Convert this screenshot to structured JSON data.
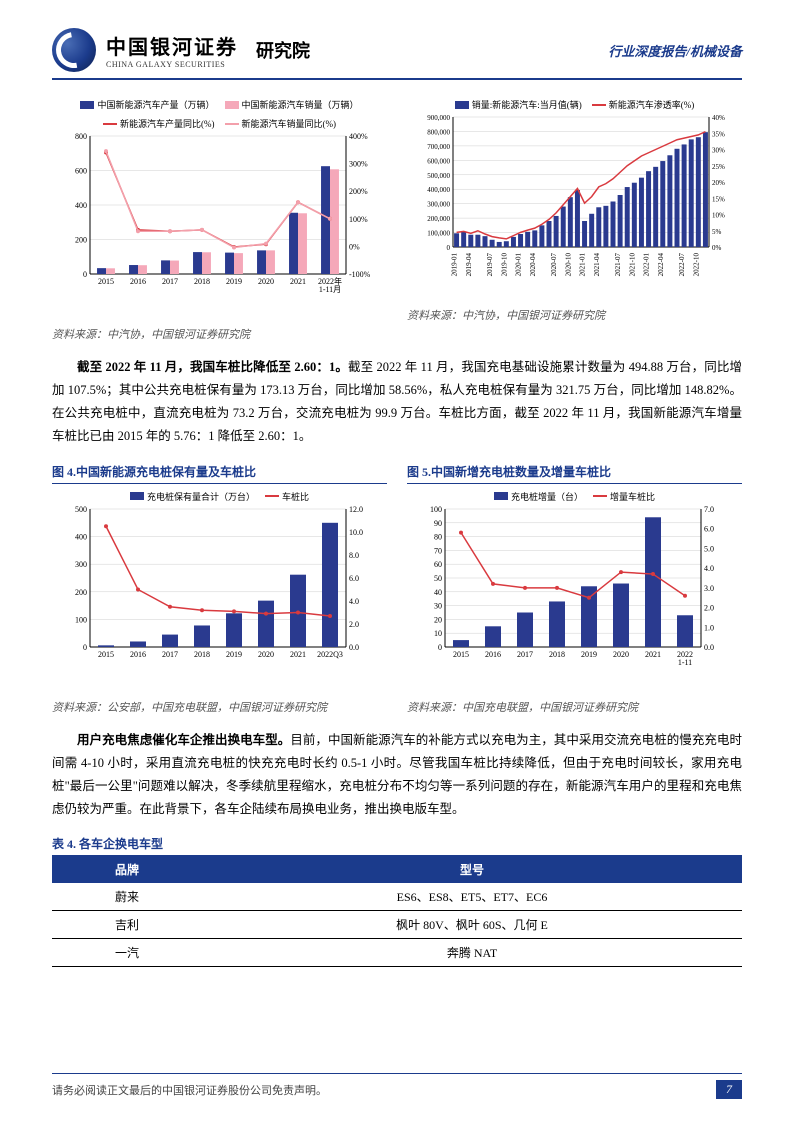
{
  "header": {
    "brand_cn": "中国银河证券",
    "brand_en": "CHINA GALAXY SECURITIES",
    "institute": "研究院",
    "doc_type": "行业深度报告/机械设备"
  },
  "colors": {
    "navy": "#1b3b8c",
    "red": "#d93a3f",
    "pink": "#f7b6c2",
    "bar_navy": "#2a3a8f",
    "bar_pink": "#f5a8b9",
    "line_red": "#d93a3f",
    "line_pink": "#f3a0ab",
    "grid": "#cfcfcf",
    "axis": "#000000",
    "bg": "#ffffff"
  },
  "chart1": {
    "legend": [
      "中国新能源汽车产量（万辆）",
      "中国新能源汽车销量（万辆）",
      "新能源汽车产量同比(%)",
      "新能源汽车销量同比(%)"
    ],
    "legend_colors": [
      "#2a3a8f",
      "#f5a8b9",
      "#d93a3f",
      "#f3a0ab"
    ],
    "x_labels": [
      "2015",
      "2016",
      "2017",
      "2018",
      "2019",
      "2020",
      "2021",
      "2022年\n1-11月"
    ],
    "left_ylim": [
      0,
      800
    ],
    "left_ticks": [
      0,
      200,
      400,
      600,
      800
    ],
    "right_ylim": [
      -100,
      400
    ],
    "right_ticks": [
      "-100%",
      "0%",
      "100%",
      "200%",
      "300%",
      "400%"
    ],
    "bar1": [
      34,
      52,
      79,
      127,
      124,
      137,
      355,
      625
    ],
    "bar2": [
      33,
      51,
      78,
      126,
      121,
      137,
      352,
      607
    ],
    "line1": [
      340,
      60,
      55,
      60,
      -2,
      8,
      160,
      100
    ],
    "line2": [
      345,
      55,
      55,
      60,
      -4,
      10,
      160,
      100
    ],
    "source": "资料来源：中汽协，中国银河证券研究院"
  },
  "chart2": {
    "legend": [
      "销量:新能源汽车:当月值(辆)",
      "新能源汽车渗透率(%)"
    ],
    "legend_colors": [
      "#2a3a8f",
      "#d93a3f"
    ],
    "left_ylim": [
      0,
      900000
    ],
    "left_ticks": [
      "0",
      "100,000",
      "200,000",
      "300,000",
      "400,000",
      "500,000",
      "600,000",
      "700,000",
      "800,000",
      "900,000"
    ],
    "right_ylim": [
      0,
      40
    ],
    "right_ticks": [
      "0%",
      "5%",
      "10%",
      "15%",
      "20%",
      "25%",
      "30%",
      "35%",
      "40%"
    ],
    "x_labels": [
      "2019-01",
      "2019-04",
      "2019-07",
      "2019-10",
      "2020-01",
      "2020-04",
      "2020-07",
      "2020-10",
      "2021-01",
      "2021-04",
      "2021-07",
      "2021-10",
      "2022-01",
      "2022-04",
      "2022-07",
      "2022-10"
    ],
    "bars": [
      95,
      105,
      85,
      85,
      75,
      50,
      35,
      40,
      70,
      90,
      105,
      115,
      150,
      180,
      215,
      280,
      345,
      395,
      180,
      230,
      275,
      285,
      315,
      360,
      415,
      445,
      480,
      525,
      555,
      595,
      635,
      680,
      710,
      745,
      760,
      795
    ],
    "line": [
      4.5,
      4.8,
      4.2,
      5.0,
      4.0,
      3.2,
      2.8,
      2.5,
      3.5,
      4.5,
      5.2,
      5.8,
      7.0,
      8.5,
      10.5,
      13.0,
      15.5,
      18.0,
      13.5,
      15.5,
      18.5,
      19.5,
      21.0,
      23.0,
      25.0,
      26.5,
      28.0,
      29.0,
      30.0,
      31.0,
      32.0,
      33.0,
      33.5,
      34.0,
      34.5,
      35.5
    ],
    "source": "资料来源：中汽协，中国银河证券研究院"
  },
  "para1": {
    "lead": "截至 2022 年 11 月，我国车桩比降低至 2.60：1。",
    "body": "截至 2022 年 11 月，我国充电基础设施累计数量为 494.88 万台，同比增加 107.5%；其中公共充电桩保有量为 173.13 万台，同比增加 58.56%，私人充电桩保有量为 321.75 万台，同比增加 148.82%。在公共充电桩中，直流充电桩为 73.2 万台，交流充电桩为 99.9 万台。车桩比方面，截至 2022 年 11 月，我国新能源汽车增量车桩比已由 2015 年的 5.76：1 降低至 2.60：1。"
  },
  "chart3": {
    "title": "图 4.中国新能源充电桩保有量及车桩比",
    "legend": [
      "充电桩保有量合计（万台）",
      "车桩比"
    ],
    "legend_colors": [
      "#2a3a8f",
      "#d93a3f"
    ],
    "x_labels": [
      "2015",
      "2016",
      "2017",
      "2018",
      "2019",
      "2020",
      "2021",
      "2022Q3"
    ],
    "left_ylim": [
      0,
      500
    ],
    "left_ticks": [
      0,
      100,
      200,
      300,
      400,
      500
    ],
    "right_ylim": [
      0,
      12
    ],
    "right_ticks": [
      "0.0",
      "2.0",
      "4.0",
      "6.0",
      "8.0",
      "10.0",
      "12.0"
    ],
    "bars": [
      6,
      20,
      45,
      78,
      122,
      168,
      262,
      450
    ],
    "line": [
      10.5,
      5.0,
      3.5,
      3.2,
      3.1,
      2.9,
      3.0,
      2.7
    ],
    "source": "资料来源：公安部，中国充电联盟，中国银河证券研究院"
  },
  "chart4": {
    "title": "图 5.中国新增充电桩数量及增量车桩比",
    "legend": [
      "充电桩增量（台）",
      "增量车桩比"
    ],
    "legend_colors": [
      "#2a3a8f",
      "#d93a3f"
    ],
    "x_labels": [
      "2015",
      "2016",
      "2017",
      "2018",
      "2019",
      "2020",
      "2021",
      "2022\n1-11"
    ],
    "left_ylim": [
      0,
      100
    ],
    "left_ticks": [
      0,
      10,
      20,
      30,
      40,
      50,
      60,
      70,
      80,
      90,
      100
    ],
    "right_ylim": [
      0,
      7
    ],
    "right_ticks": [
      "0.0",
      "1.0",
      "2.0",
      "3.0",
      "4.0",
      "5.0",
      "6.0",
      "7.0"
    ],
    "bars": [
      5,
      15,
      25,
      33,
      44,
      46,
      94,
      23
    ],
    "line": [
      5.8,
      3.2,
      3.0,
      3.0,
      2.5,
      3.8,
      3.7,
      2.6
    ],
    "source": "资料来源：中国充电联盟，中国银河证券研究院"
  },
  "para2": {
    "lead": "用户充电焦虑催化车企推出换电车型。",
    "body": "目前，中国新能源汽车的补能方式以充电为主，其中采用交流充电桩的慢充充电时间需 4-10 小时，采用直流充电桩的快充充电时长约 0.5-1 小时。尽管我国车桩比持续降低，但由于充电时间较长，家用充电桩\"最后一公里\"问题难以解决，冬季续航里程缩水，充电桩分布不均匀等一系列问题的存在，新能源汽车用户的里程和充电焦虑仍较为严重。在此背景下，各车企陆续布局换电业务，推出换电版车型。"
  },
  "table": {
    "title": "表 4. 各车企换电车型",
    "headers": [
      "品牌",
      "型号"
    ],
    "rows": [
      [
        "蔚来",
        "ES6、ES8、ET5、ET7、EC6"
      ],
      [
        "吉利",
        "枫叶 80V、枫叶 60S、几何 E"
      ],
      [
        "一汽",
        "奔腾 NAT"
      ]
    ]
  },
  "footer": {
    "disclaimer": "请务必阅读正文最后的中国银河证券股份公司免责声明。",
    "page": "7"
  }
}
